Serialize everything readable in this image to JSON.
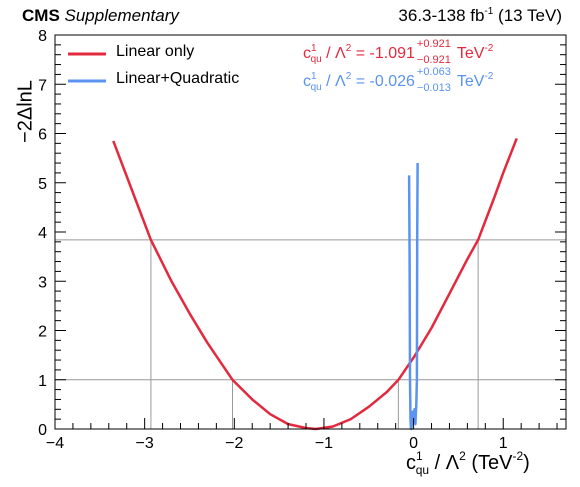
{
  "header": {
    "experiment": "CMS",
    "status": "Supplementary",
    "lumi_prefix": "36.3-138 fb",
    "lumi_exp": "-1",
    "lumi_suffix": " (13 TeV)"
  },
  "legend": {
    "linear_label": "Linear only",
    "quad_label": "Linear+Quadratic"
  },
  "results": {
    "linear": {
      "value": "-1.091",
      "up": "+0.921",
      "down": "−0.921",
      "color": "#e3293e"
    },
    "quad": {
      "value": "-0.026",
      "up": "+0.063",
      "down": "−0.013",
      "color": "#5a93f0"
    }
  },
  "axis_text": {
    "param_c": "c",
    "param_sup": "1",
    "param_sub": "qu",
    "param_rest": " / Λ",
    "param_rest_sup": "2",
    "result_eq": " = ",
    "unit": "TeV",
    "unit_sup": "-2",
    "x_unit_open": " (TeV",
    "x_unit_close": ")",
    "ylabel": "−2ΔlnL"
  },
  "chart_data": {
    "type": "line",
    "xlim": [
      -4,
      1.7
    ],
    "ylim": [
      0,
      8
    ],
    "x_ticks": [
      -4,
      -3,
      -2,
      -1,
      0,
      1
    ],
    "y_ticks": [
      0,
      1,
      2,
      3,
      4,
      5,
      6,
      7,
      8
    ],
    "x_tick_labels": [
      "−4",
      "−3",
      "−2",
      "−1",
      "0",
      "1"
    ],
    "y_tick_labels": [
      "0",
      "1",
      "2",
      "3",
      "4",
      "5",
      "6",
      "7",
      "8"
    ],
    "reference_lines": [
      1,
      3.84
    ],
    "interval_lines": [
      {
        "x": -2.93,
        "y": 3.84
      },
      {
        "x": -2.02,
        "y": 1
      },
      {
        "x": -1.091,
        "y": 0
      },
      {
        "x": -0.17,
        "y": 1
      },
      {
        "x": 0.72,
        "y": 3.84
      }
    ],
    "series": [
      {
        "name": "Linear only",
        "color": "#e3293e",
        "x": [
          -3.35,
          -3.1,
          -2.93,
          -2.7,
          -2.5,
          -2.3,
          -2.02,
          -1.8,
          -1.6,
          -1.4,
          -1.2,
          -1.091,
          -0.9,
          -0.7,
          -0.5,
          -0.3,
          -0.17,
          0.0,
          0.2,
          0.4,
          0.6,
          0.72,
          0.9,
          1.0,
          1.15
        ],
        "y": [
          5.85,
          4.65,
          3.84,
          3.0,
          2.35,
          1.75,
          1.0,
          0.6,
          0.3,
          0.1,
          0.02,
          0.0,
          0.05,
          0.2,
          0.45,
          0.75,
          1.0,
          1.45,
          2.05,
          2.75,
          3.45,
          3.84,
          4.7,
          5.2,
          5.9
        ]
      },
      {
        "name": "Linear+Quadratic",
        "color": "#5a93f0",
        "x": [
          -0.05,
          -0.045,
          -0.04,
          -0.035,
          -0.03,
          -0.026,
          -0.02,
          -0.01,
          0.0,
          0.01,
          0.02,
          0.03,
          0.037,
          0.04,
          0.045
        ],
        "y": [
          5.15,
          3.5,
          1.0,
          0.2,
          0.03,
          0.0,
          0.1,
          0.35,
          0.25,
          0.4,
          0.1,
          0.5,
          1.0,
          3.8,
          5.4
        ]
      }
    ]
  }
}
